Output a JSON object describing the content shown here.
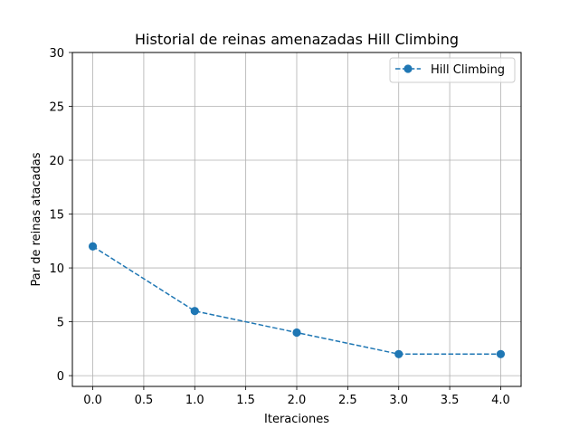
{
  "chart_data": {
    "type": "line",
    "title": "Historial de reinas amenazadas Hill Climbing",
    "xlabel": "Iteraciones",
    "ylabel": "Par de reinas atacadas",
    "xlim": [
      -0.2,
      4.2
    ],
    "ylim": [
      -1,
      30
    ],
    "xticks": [
      "0.0",
      "0.5",
      "1.0",
      "1.5",
      "2.0",
      "2.5",
      "3.0",
      "3.5",
      "4.0"
    ],
    "yticks": [
      "0",
      "5",
      "10",
      "15",
      "20",
      "25",
      "30"
    ],
    "grid": true,
    "legend_position": "top-right",
    "series": [
      {
        "name": "Hill Climbing",
        "color": "#1f77b4",
        "line_style": "dashed",
        "marker": "circle",
        "x": [
          0,
          1,
          2,
          3,
          4
        ],
        "y": [
          12,
          6,
          4,
          2,
          2
        ]
      }
    ]
  }
}
